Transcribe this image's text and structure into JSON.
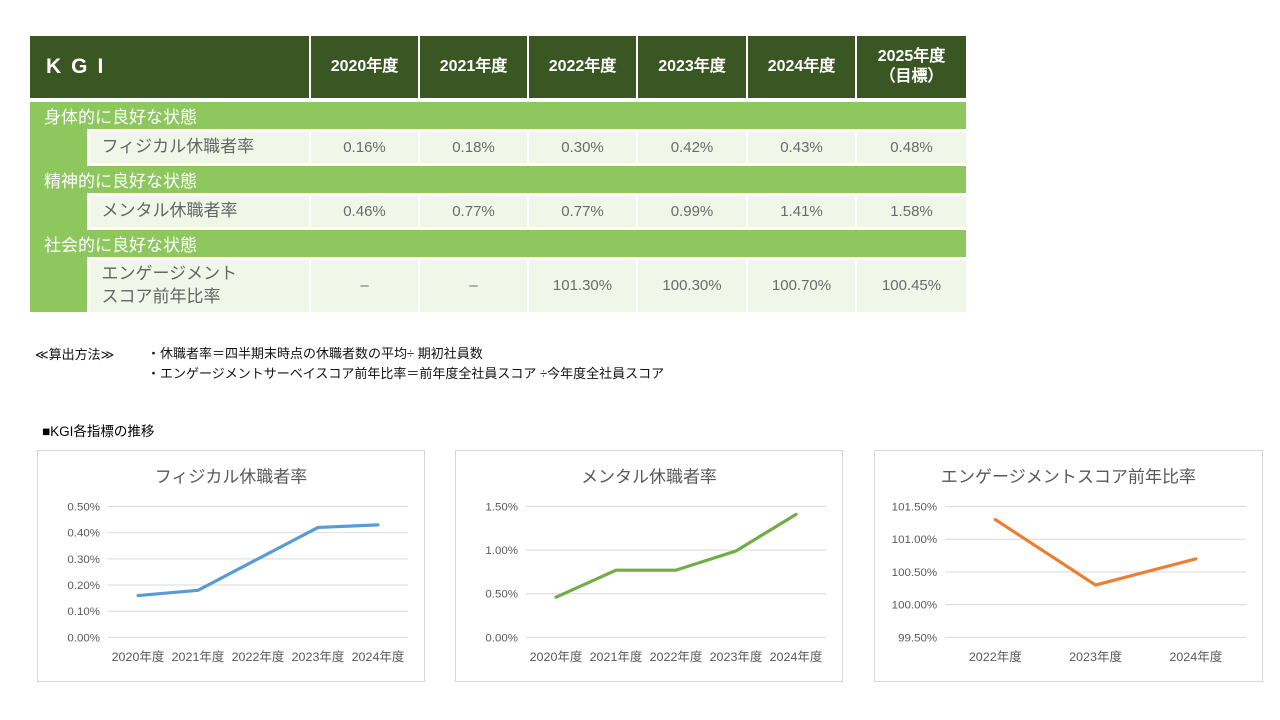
{
  "table": {
    "title": "KGI",
    "year_headers": [
      "2020年度",
      "2021年度",
      "2022年度",
      "2023年度",
      "2024年度",
      "2025年度\n（目標）"
    ],
    "sections": [
      {
        "label": "身体的に良好な状態",
        "indicator": "フィジカル休職者率",
        "values": [
          "0.16%",
          "0.18%",
          "0.30%",
          "0.42%",
          "0.43%",
          "0.48%"
        ]
      },
      {
        "label": "精神的に良好な状態",
        "indicator": "メンタル休職者率",
        "values": [
          "0.46%",
          "0.77%",
          "0.77%",
          "0.99%",
          "1.41%",
          "1.58%"
        ]
      },
      {
        "label": "社会的に良好な状態",
        "indicator": "エンゲージメント\nスコア前年比率",
        "values": [
          "–",
          "–",
          "101.30%",
          "100.30%",
          "100.70%",
          "100.45%"
        ]
      }
    ]
  },
  "notes": {
    "heading": "≪算出方法≫",
    "lines": [
      "・休職者率＝四半期末時点の休職者数の平均÷ 期初社員数",
      "・エンゲージメントサーベイスコア前年比率＝前年度全社員スコア ÷今年度全社員スコア"
    ]
  },
  "charts_section_title": "■KGI各指標の推移",
  "chart_data": [
    {
      "type": "line",
      "title": "フィジカル休職者率",
      "categories": [
        "2020年度",
        "2021年度",
        "2022年度",
        "2023年度",
        "2024年度"
      ],
      "values": [
        0.16,
        0.18,
        0.3,
        0.42,
        0.43
      ],
      "ylim": [
        0.0,
        0.5
      ],
      "ystep": 0.1,
      "tick_suffix": "%",
      "grid": true,
      "legend": "none",
      "line_color": "#5B9BD5"
    },
    {
      "type": "line",
      "title": "メンタル休職者率",
      "categories": [
        "2020年度",
        "2021年度",
        "2022年度",
        "2023年度",
        "2024年度"
      ],
      "values": [
        0.46,
        0.77,
        0.77,
        0.99,
        1.41
      ],
      "ylim": [
        0.0,
        1.5
      ],
      "ystep": 0.5,
      "tick_suffix": "%",
      "grid": true,
      "legend": "none",
      "line_color": "#70AD47"
    },
    {
      "type": "line",
      "title": "エンゲージメントスコア前年比率",
      "categories": [
        "2022年度",
        "2023年度",
        "2024年度"
      ],
      "values": [
        101.3,
        100.3,
        100.7
      ],
      "ylim": [
        99.5,
        101.5
      ],
      "ystep": 0.5,
      "tick_suffix": "%",
      "grid": true,
      "legend": "none",
      "line_color": "#ED7D31"
    }
  ],
  "colors": {
    "table_header_bg": "#3A5623",
    "section_band_bg": "#8DC75E",
    "row_bg": "#F0F7E8",
    "value_text": "#6B6B6B",
    "chart_text": "#595959",
    "gridline": "#D9D9D9",
    "chart_border": "#D6D6D6",
    "line_blue": "#5B9BD5",
    "line_green": "#70AD47",
    "line_orange": "#ED7D31"
  }
}
